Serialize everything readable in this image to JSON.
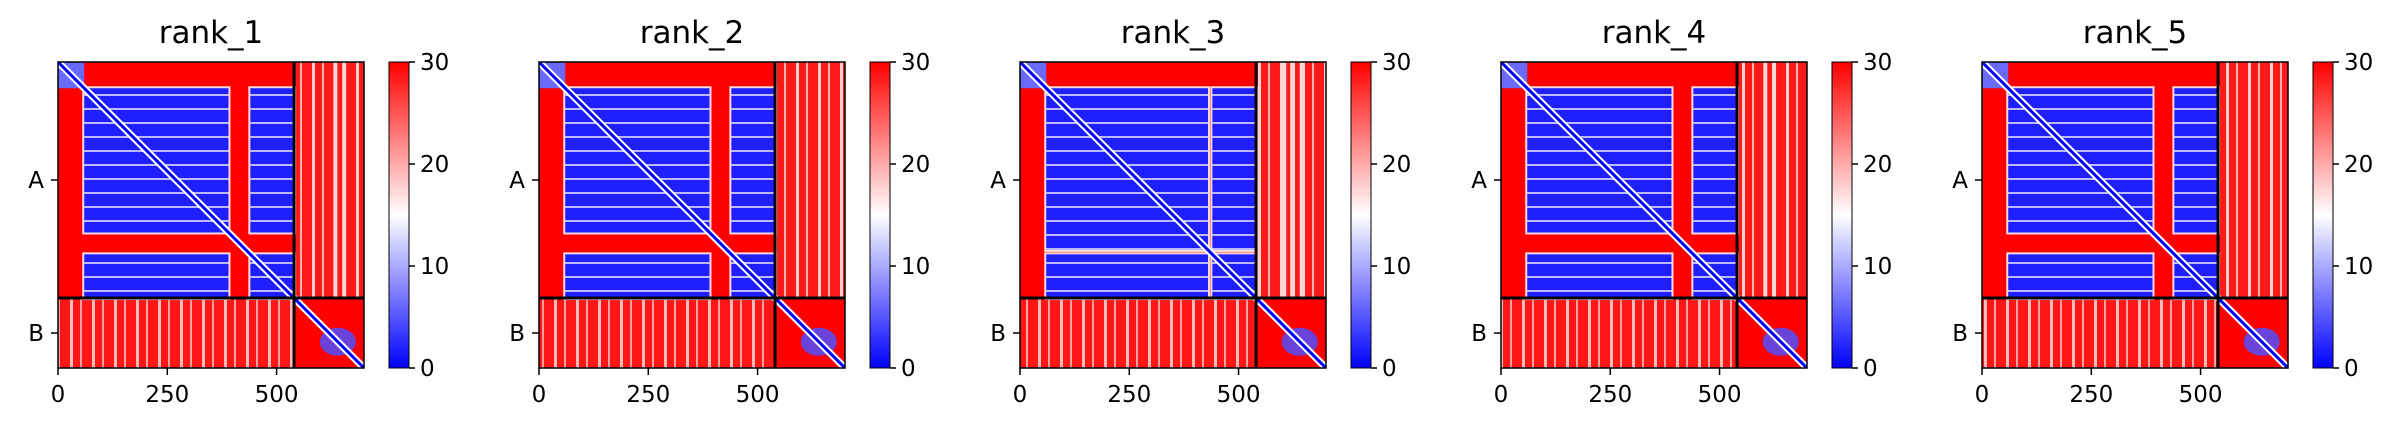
{
  "colors": {
    "low": "#0000ff",
    "mid": "#ffffff",
    "high": "#ff0000",
    "border": "#000000"
  },
  "chart_data": [
    {
      "type": "heatmap",
      "title": "rank_1",
      "chains": [
        {
          "name": "A",
          "start": 0,
          "end": 540
        },
        {
          "name": "B",
          "start": 540,
          "end": 700
        }
      ],
      "x_ticks": [
        0,
        250,
        500
      ],
      "x_tick_labels": [
        "0",
        "250",
        "500"
      ],
      "y_tick_labels": [
        "A",
        "B"
      ],
      "xlim": [
        0,
        700
      ],
      "colorbar": {
        "vmin": 0,
        "vmax": 30,
        "ticks": [
          0,
          10,
          20,
          30
        ],
        "colormap": "bwr"
      },
      "domains": [
        [
          60,
          390
        ],
        [
          440,
          540
        ]
      ],
      "linker_gaps": [
        [
          390,
          440
        ]
      ],
      "fill_stripe_x": [
        630,
        650
      ],
      "b_domain_row_value": "high"
    },
    {
      "type": "heatmap",
      "title": "rank_2",
      "chains": [
        {
          "name": "A",
          "start": 0,
          "end": 540
        },
        {
          "name": "B",
          "start": 540,
          "end": 700
        }
      ],
      "x_ticks": [
        0,
        250,
        500
      ],
      "x_tick_labels": [
        "0",
        "250",
        "500"
      ],
      "y_tick_labels": [
        "A",
        "B"
      ],
      "xlim": [
        0,
        700
      ],
      "colorbar": {
        "vmin": 0,
        "vmax": 30,
        "ticks": [
          0,
          10,
          20,
          30
        ],
        "colormap": "bwr"
      },
      "domains": [
        [
          60,
          390
        ],
        [
          440,
          540
        ]
      ],
      "linker_gaps": [],
      "fill_stripe_x": [],
      "b_domain_row_value": "high"
    },
    {
      "type": "heatmap",
      "title": "rank_3",
      "chains": [
        {
          "name": "A",
          "start": 0,
          "end": 540
        },
        {
          "name": "B",
          "start": 540,
          "end": 700
        }
      ],
      "x_ticks": [
        0,
        250,
        500
      ],
      "x_tick_labels": [
        "0",
        "250",
        "500"
      ],
      "y_tick_labels": [
        "A",
        "B"
      ],
      "xlim": [
        0,
        700
      ],
      "colorbar": {
        "vmin": 0,
        "vmax": 30,
        "ticks": [
          0,
          10,
          20,
          30
        ],
        "colormap": "bwr"
      },
      "domains": [
        [
          60,
          430
        ],
        [
          440,
          540
        ]
      ],
      "linker_gaps": [],
      "fill_stripe_x": [
        600,
        620,
        640
      ],
      "b_domain_row_value": "high"
    },
    {
      "type": "heatmap",
      "title": "rank_4",
      "chains": [
        {
          "name": "A",
          "start": 0,
          "end": 540
        },
        {
          "name": "B",
          "start": 540,
          "end": 700
        }
      ],
      "x_ticks": [
        0,
        250,
        500
      ],
      "x_tick_labels": [
        "0",
        "250",
        "500"
      ],
      "y_tick_labels": [
        "A",
        "B"
      ],
      "xlim": [
        0,
        700
      ],
      "colorbar": {
        "vmin": 0,
        "vmax": 30,
        "ticks": [
          0,
          10,
          20,
          30
        ],
        "colormap": "bwr"
      },
      "domains": [
        [
          60,
          390
        ],
        [
          440,
          540
        ]
      ],
      "linker_gaps": [],
      "fill_stripe_x": [
        600,
        620
      ],
      "b_domain_row_value": "high"
    },
    {
      "type": "heatmap",
      "title": "rank_5",
      "chains": [
        {
          "name": "A",
          "start": 0,
          "end": 540
        },
        {
          "name": "B",
          "start": 540,
          "end": 700
        }
      ],
      "x_ticks": [
        0,
        250,
        500
      ],
      "x_tick_labels": [
        "0",
        "250",
        "500"
      ],
      "y_tick_labels": [
        "A",
        "B"
      ],
      "xlim": [
        0,
        700
      ],
      "colorbar": {
        "vmin": 0,
        "vmax": 30,
        "ticks": [
          0,
          10,
          20,
          30
        ],
        "colormap": "bwr"
      },
      "domains": [
        [
          60,
          390
        ],
        [
          440,
          540
        ]
      ],
      "linker_gaps": [],
      "fill_stripe_x": [],
      "b_domain_row_value": "high"
    }
  ]
}
